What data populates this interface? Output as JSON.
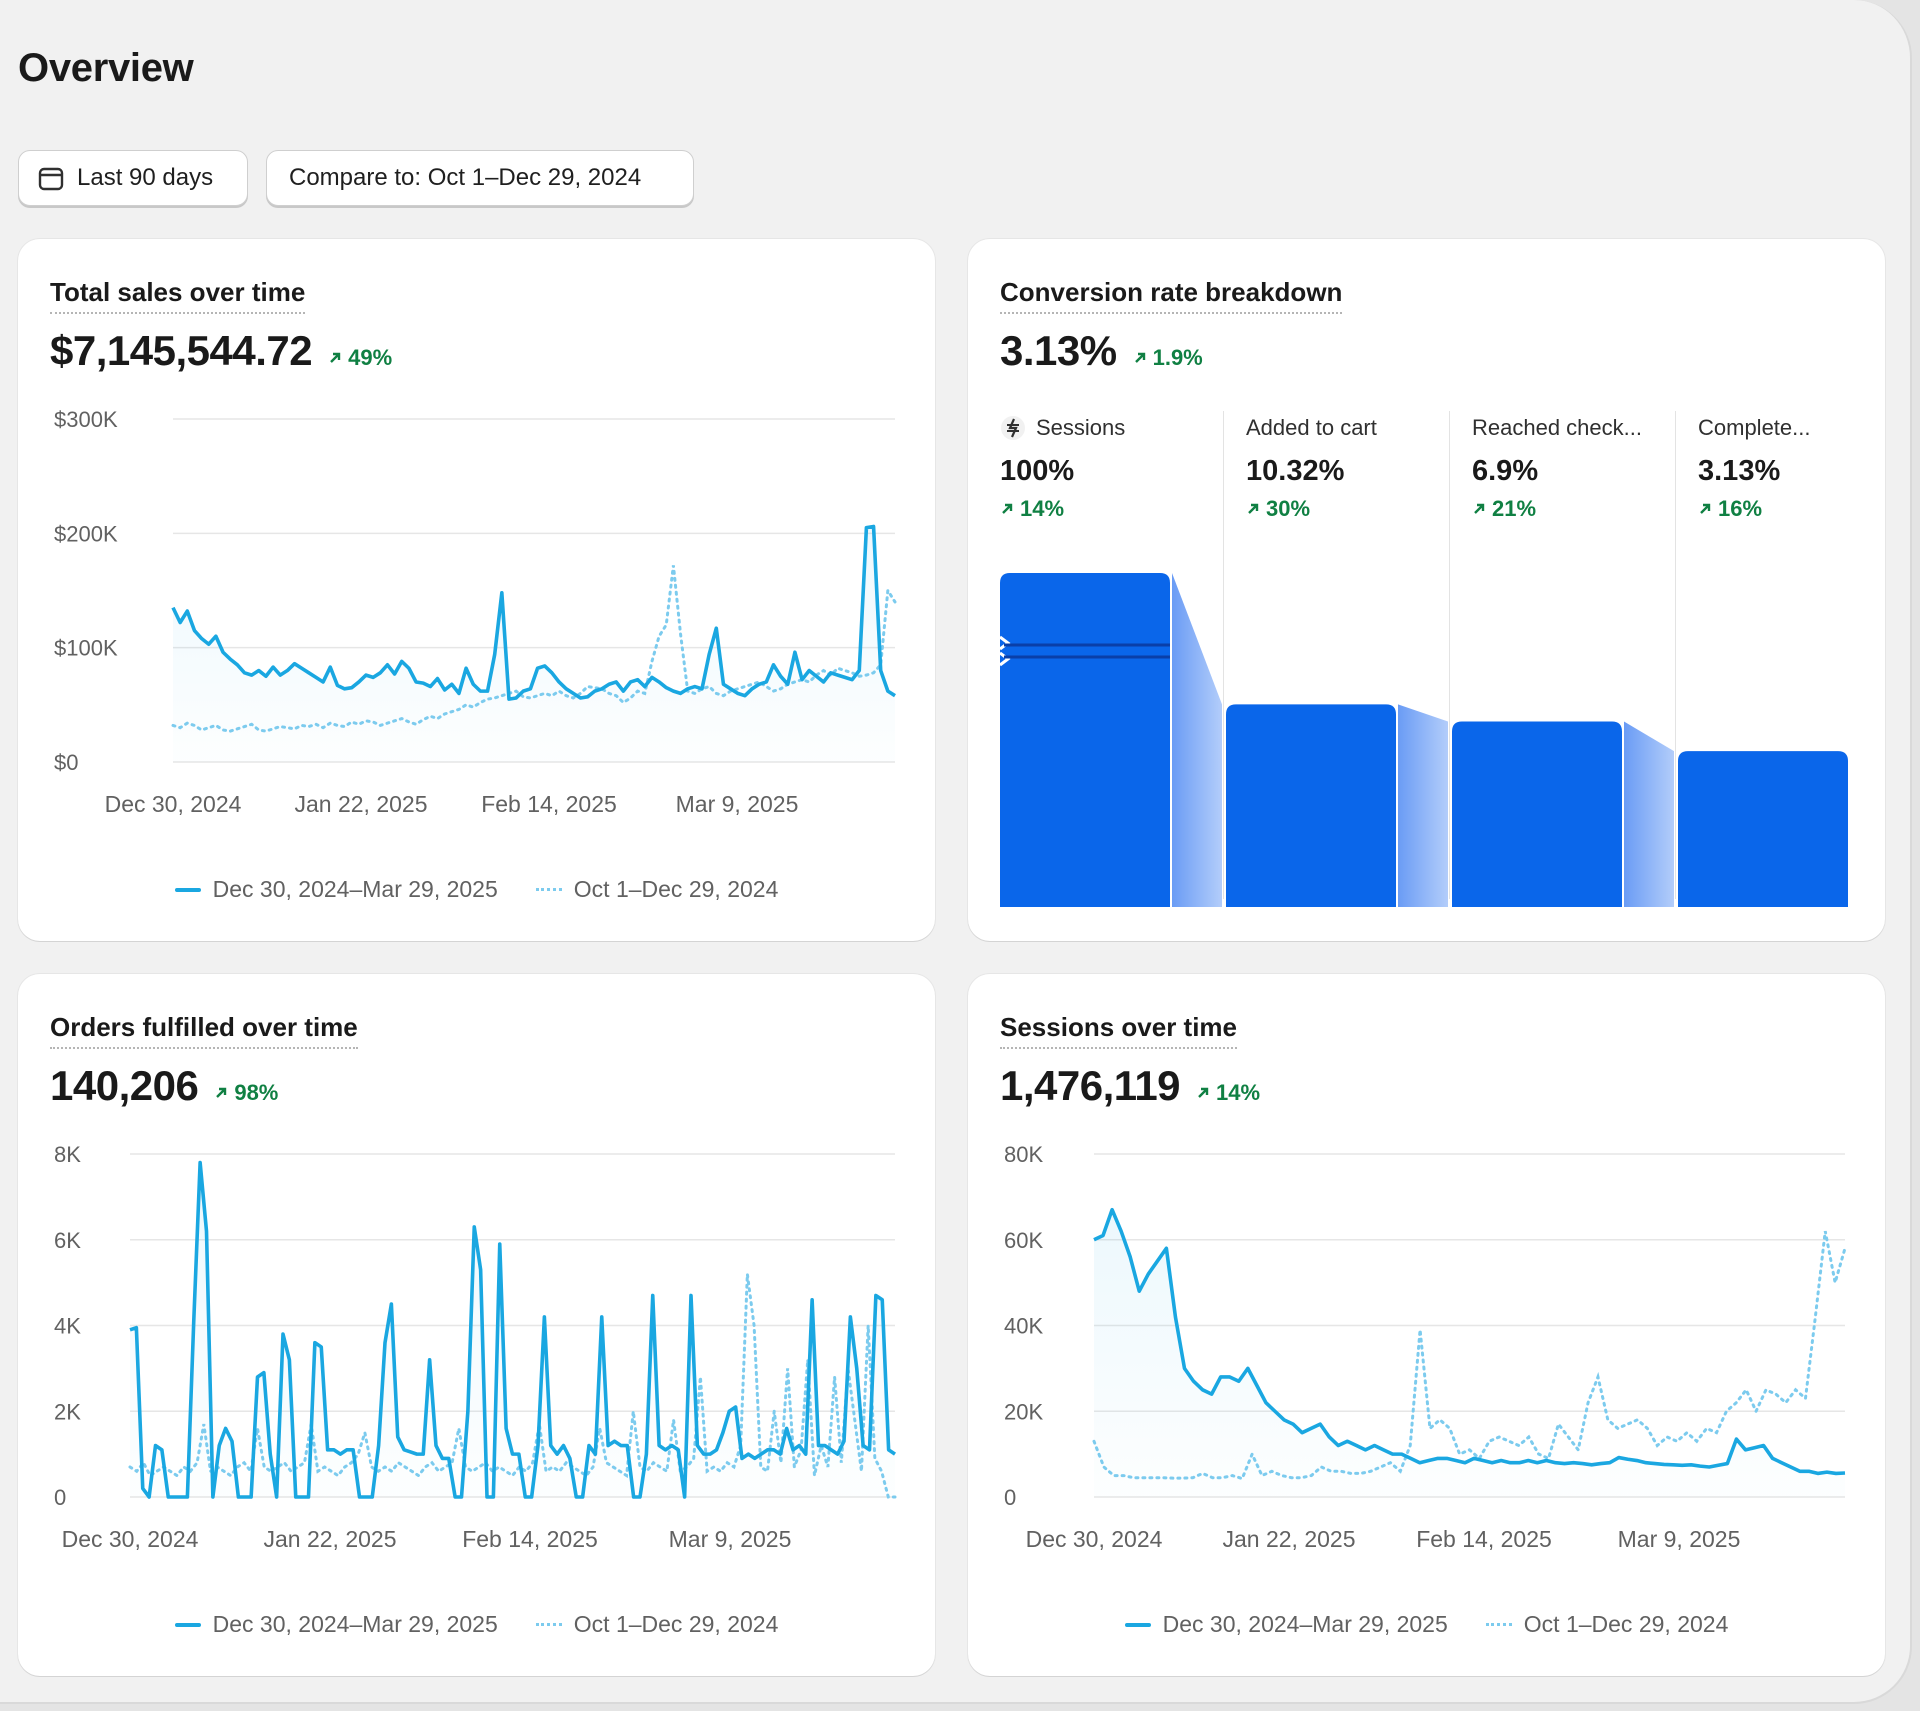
{
  "page": {
    "title": "Overview"
  },
  "toolbar": {
    "date_label": "Last 90 days",
    "compare_label": "Compare to: Oct 1–Dec 29, 2024"
  },
  "colors": {
    "primary_line": "#1aa7e1",
    "compare_line": "#7ccbee",
    "funnel_bar": "#0a66ea",
    "positive": "#108043"
  },
  "icons": {
    "date": "calendar-icon",
    "change": "arrow-up-right-icon",
    "sessions": "sessions-icon"
  },
  "cards": {
    "sales": {
      "title": "Total sales over time",
      "value": "$7,145,544.72",
      "change": "49%",
      "legend": {
        "current": "Dec 30, 2024–Mar 29, 2025",
        "previous": "Oct 1–Dec 29, 2024"
      }
    },
    "conversion": {
      "title": "Conversion rate breakdown",
      "value": "3.13%",
      "change": "1.9%"
    },
    "orders": {
      "title": "Orders fulfilled over time",
      "value": "140,206",
      "change": "98%",
      "legend": {
        "current": "Dec 30, 2024–Mar 29, 2025",
        "previous": "Oct 1–Dec 29, 2024"
      }
    },
    "sessions": {
      "title": "Sessions over time",
      "value": "1,476,119",
      "change": "14%",
      "legend": {
        "current": "Dec 30, 2024–Mar 29, 2025",
        "previous": "Oct 1–Dec 29, 2024"
      }
    }
  },
  "chart_data": [
    {
      "type": "line",
      "title": "Total sales over time",
      "y_ticks": [
        "$0",
        "$100K",
        "$200K",
        "$300K"
      ],
      "ylim": [
        0,
        300000
      ],
      "x_ticks": [
        "Dec 30, 2024",
        "Jan 22, 2025",
        "Feb 14, 2025",
        "Mar 9, 2025"
      ],
      "grid": true,
      "legend_position": "bottom",
      "series": [
        {
          "name": "Dec 30, 2024–Mar 29, 2025",
          "style": "solid",
          "values": [
            135000,
            122000,
            132000,
            115000,
            108000,
            103000,
            110000,
            96000,
            90000,
            85000,
            78000,
            76000,
            80000,
            75000,
            83000,
            76000,
            80000,
            86000,
            82000,
            78000,
            74000,
            70000,
            83000,
            67000,
            64000,
            65000,
            70000,
            76000,
            74000,
            78000,
            85000,
            77000,
            88000,
            82000,
            70000,
            69000,
            66000,
            73000,
            63000,
            68000,
            60000,
            82000,
            68000,
            62000,
            62000,
            94000,
            148000,
            55000,
            56000,
            62000,
            64000,
            82000,
            84000,
            78000,
            70000,
            64000,
            60000,
            56000,
            57000,
            62000,
            64000,
            68000,
            70000,
            62000,
            70000,
            72000,
            66000,
            74000,
            70000,
            65000,
            62000,
            60000,
            64000,
            66000,
            64000,
            94000,
            117000,
            68000,
            64000,
            60000,
            58000,
            64000,
            68000,
            70000,
            85000,
            75000,
            68000,
            96000,
            72000,
            80000,
            75000,
            70000,
            78000,
            76000,
            74000,
            72000,
            80000,
            205000,
            206000,
            80000,
            62000,
            58000
          ]
        },
        {
          "name": "Oct 1–Dec 29, 2024",
          "style": "dotted",
          "values": [
            32000,
            30000,
            34000,
            32000,
            28000,
            30000,
            32000,
            28000,
            27000,
            29000,
            31000,
            33000,
            28000,
            27000,
            29000,
            31000,
            30000,
            29000,
            32000,
            31000,
            33000,
            30000,
            34000,
            32000,
            31000,
            35000,
            33000,
            36000,
            35000,
            32000,
            34000,
            36000,
            38000,
            35000,
            33000,
            37000,
            40000,
            38000,
            42000,
            44000,
            46000,
            50000,
            48000,
            52000,
            55000,
            56000,
            58000,
            60000,
            62000,
            57000,
            56000,
            58000,
            60000,
            58000,
            62000,
            58000,
            56000,
            60000,
            66000,
            65000,
            64000,
            60000,
            58000,
            52000,
            56000,
            62000,
            60000,
            88000,
            110000,
            120000,
            172000,
            112000,
            62000,
            60000,
            64000,
            66000,
            60000,
            58000,
            62000,
            64000,
            66000,
            68000,
            70000,
            66000,
            62000,
            64000,
            68000,
            70000,
            72000,
            70000,
            76000,
            80000,
            76000,
            82000,
            80000,
            78000,
            75000,
            76000,
            78000,
            85000,
            150000,
            140000
          ]
        }
      ]
    },
    {
      "type": "bar",
      "title": "Conversion rate breakdown",
      "categories": [
        "Sessions",
        "Added to cart",
        "Reached check...",
        "Complete..."
      ],
      "values": [
        100,
        10.32,
        6.9,
        3.13
      ],
      "value_labels": [
        "100%",
        "10.32%",
        "6.9%",
        "3.13%"
      ],
      "changes": [
        "14%",
        "30%",
        "21%",
        "16%"
      ]
    },
    {
      "type": "line",
      "title": "Orders fulfilled over time",
      "y_ticks": [
        "0",
        "2K",
        "4K",
        "6K",
        "8K"
      ],
      "ylim": [
        0,
        8000
      ],
      "x_ticks": [
        "Dec 30, 2024",
        "Jan 22, 2025",
        "Feb 14, 2025",
        "Mar 9, 2025"
      ],
      "grid": true,
      "legend_position": "bottom",
      "series": [
        {
          "name": "Dec 30, 2024–Mar 29, 2025",
          "style": "solid",
          "values": [
            3900,
            3950,
            200,
            0,
            1200,
            1100,
            0,
            0,
            0,
            0,
            4100,
            7800,
            6200,
            0,
            1200,
            1600,
            1300,
            0,
            0,
            0,
            2800,
            2900,
            1000,
            0,
            3800,
            3200,
            0,
            0,
            0,
            3600,
            3500,
            1100,
            1100,
            1000,
            1100,
            1100,
            0,
            0,
            0,
            1200,
            3600,
            4500,
            1400,
            1100,
            1050,
            1000,
            1000,
            3200,
            1200,
            900,
            900,
            0,
            0,
            2000,
            6300,
            5300,
            0,
            0,
            5900,
            1600,
            1000,
            1000,
            0,
            0,
            1200,
            4200,
            1200,
            1000,
            1200,
            900,
            0,
            0,
            1200,
            1000,
            4200,
            1200,
            1300,
            1200,
            1200,
            0,
            0,
            1000,
            4700,
            1200,
            1100,
            1200,
            1100,
            0,
            4700,
            1200,
            1000,
            1000,
            1100,
            1500,
            2000,
            2100,
            900,
            1000,
            900,
            1000,
            1100,
            1100,
            1000,
            1600,
            1100,
            1200,
            1000,
            4600,
            1200,
            1200,
            1100,
            1000,
            1300,
            4200,
            3000,
            1200,
            1100,
            4700,
            4600,
            1100,
            1000
          ]
        },
        {
          "name": "Oct 1–Dec 29, 2024",
          "style": "dotted",
          "values": [
            700,
            600,
            800,
            500,
            600,
            700,
            600,
            500,
            700,
            600,
            800,
            1700,
            600,
            700,
            600,
            500,
            700,
            800,
            600,
            1600,
            700,
            600,
            700,
            800,
            600,
            700,
            800,
            1700,
            600,
            700,
            600,
            500,
            700,
            800,
            1000,
            1500,
            700,
            600,
            700,
            600,
            800,
            700,
            600,
            500,
            700,
            800,
            600,
            700,
            800,
            1600,
            700,
            600,
            700,
            800,
            600,
            700,
            600,
            500,
            700,
            600,
            800,
            1700,
            600,
            700,
            600,
            800,
            700,
            600,
            500,
            700,
            1600,
            800,
            700,
            600,
            500,
            2000,
            700,
            600,
            800,
            700,
            600,
            1800,
            600,
            700,
            900,
            2800,
            600,
            700,
            600,
            800,
            700,
            1200,
            5200,
            4000,
            700,
            600,
            2000,
            800,
            3000,
            700,
            1100,
            3200,
            500,
            1200,
            700,
            2800,
            800,
            3000,
            1800,
            600,
            4000,
            900,
            600,
            0,
            0
          ]
        }
      ]
    },
    {
      "type": "line",
      "title": "Sessions over time",
      "y_ticks": [
        "0",
        "20K",
        "40K",
        "60K",
        "80K"
      ],
      "ylim": [
        0,
        80000
      ],
      "x_ticks": [
        "Dec 30, 2024",
        "Jan 22, 2025",
        "Feb 14, 2025",
        "Mar 9, 2025"
      ],
      "grid": true,
      "legend_position": "bottom",
      "series": [
        {
          "name": "Dec 30, 2024–Mar 29, 2025",
          "style": "solid",
          "values": [
            60000,
            61000,
            67000,
            62000,
            56000,
            48000,
            52000,
            55000,
            58000,
            42000,
            30000,
            27000,
            25000,
            24000,
            28000,
            28000,
            27000,
            30000,
            26000,
            22000,
            20000,
            18000,
            17000,
            15000,
            16000,
            17000,
            14000,
            12000,
            13000,
            12000,
            11000,
            12000,
            11000,
            10000,
            10000,
            9000,
            8000,
            8500,
            9000,
            9000,
            8500,
            8000,
            9000,
            8500,
            8000,
            8500,
            8000,
            8000,
            8500,
            8000,
            8500,
            8000,
            7800,
            8000,
            7800,
            7500,
            7800,
            8000,
            9200,
            8800,
            8500,
            8000,
            7800,
            7600,
            7500,
            7400,
            7500,
            7200,
            7000,
            7400,
            7800,
            13500,
            11000,
            11500,
            12000,
            9000,
            8000,
            7000,
            6000,
            6000,
            5500,
            5800,
            5500,
            5600
          ]
        },
        {
          "name": "Oct 1–Dec 29, 2024",
          "style": "dotted",
          "values": [
            13000,
            7000,
            5000,
            5000,
            4500,
            4500,
            4500,
            4500,
            4400,
            4400,
            4500,
            5500,
            4500,
            4500,
            5000,
            4300,
            10000,
            5000,
            6000,
            5000,
            4500,
            4500,
            5000,
            7000,
            6000,
            6000,
            5500,
            5500,
            6000,
            7000,
            8000,
            6000,
            12000,
            39000,
            16000,
            18000,
            16000,
            10000,
            11000,
            9000,
            13000,
            14000,
            13000,
            12000,
            14000,
            10000,
            9000,
            17000,
            14000,
            11000,
            22000,
            28000,
            18000,
            16000,
            17000,
            18000,
            16000,
            12000,
            14000,
            13000,
            15000,
            13000,
            16000,
            15000,
            20000,
            22000,
            25000,
            20000,
            25000,
            24000,
            22000,
            25000,
            23000,
            42000,
            62000,
            50000,
            58000
          ]
        }
      ]
    }
  ]
}
